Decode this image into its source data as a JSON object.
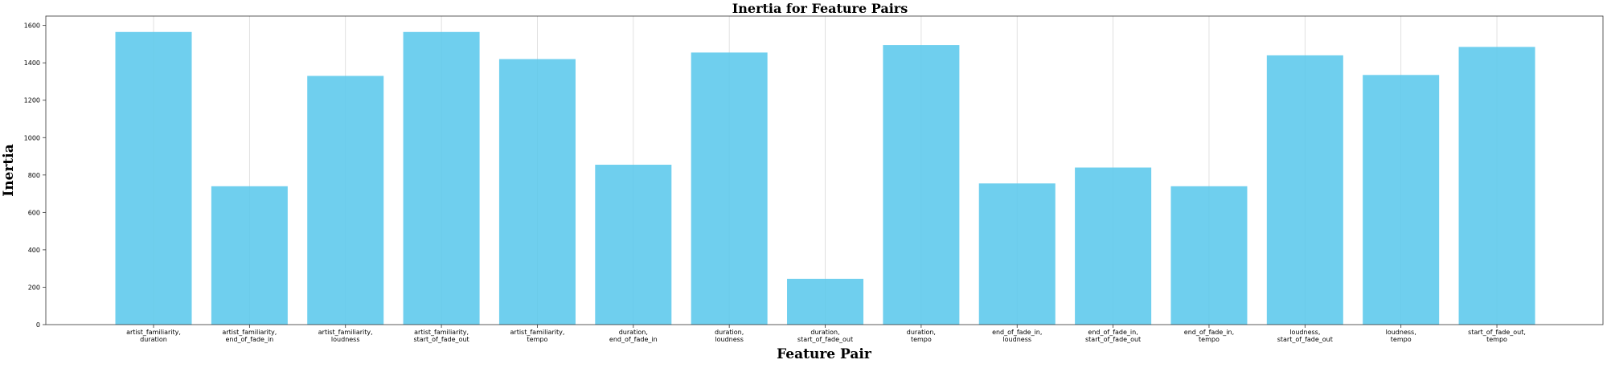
{
  "chart_data": {
    "type": "bar",
    "title": "Inertia for Feature Pairs",
    "xlabel": "Feature Pair",
    "ylabel": "Inertia",
    "categories": [
      [
        "artist_familiarity,",
        "duration"
      ],
      [
        "artist_familiarity,",
        "end_of_fade_in"
      ],
      [
        "artist_familiarity,",
        "loudness"
      ],
      [
        "artist_familiarity,",
        "start_of_fade_out"
      ],
      [
        "artist_familiarity,",
        "tempo"
      ],
      [
        "duration,",
        "end_of_fade_in"
      ],
      [
        "duration,",
        "loudness"
      ],
      [
        "duration,",
        "start_of_fade_out"
      ],
      [
        "duration,",
        "tempo"
      ],
      [
        "end_of_fade_in,",
        "loudness"
      ],
      [
        "end_of_fade_in,",
        "start_of_fade_out"
      ],
      [
        "end_of_fade_in,",
        "tempo"
      ],
      [
        "loudness,",
        "start_of_fade_out"
      ],
      [
        "loudness,",
        "tempo"
      ],
      [
        "start_of_fade_out,",
        "tempo"
      ]
    ],
    "values": [
      1565,
      740,
      1330,
      1565,
      1420,
      855,
      1455,
      245,
      1495,
      755,
      840,
      740,
      1440,
      1335,
      1485
    ],
    "ylim": [
      0,
      1650
    ],
    "yticks": [
      0,
      200,
      400,
      600,
      800,
      1000,
      1200,
      1400,
      1600
    ],
    "grid": "vertical",
    "bar_color": "#5bc8ec"
  }
}
